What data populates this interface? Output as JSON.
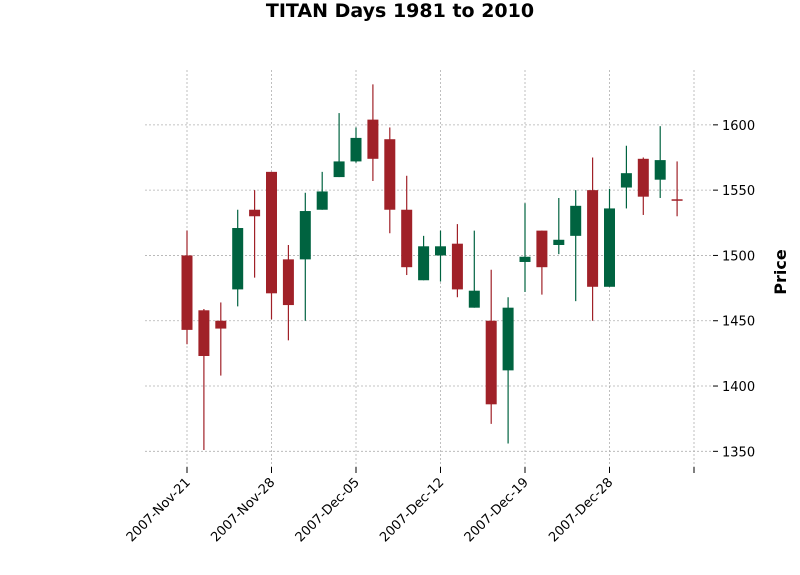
{
  "chart_data": {
    "type": "candlestick",
    "title": "TITAN Days 1981 to 2010",
    "ylabel": "Price",
    "xlabel": "",
    "ylim": [
      1338,
      1642
    ],
    "yticks": [
      1350,
      1400,
      1450,
      1500,
      1550,
      1600
    ],
    "xticks": [
      {
        "label": "2007-Nov-21",
        "index": 0
      },
      {
        "label": "2007-Nov-28",
        "index": 5
      },
      {
        "label": "2007-Dec-05",
        "index": 10
      },
      {
        "label": "2007-Dec-12",
        "index": 15
      },
      {
        "label": "2007-Dec-19",
        "index": 20
      },
      {
        "label": "2007-Dec-28",
        "index": 25
      },
      {
        "label": "",
        "index": 30
      }
    ],
    "grid": true,
    "colors": {
      "up": "#006340",
      "down": "#A02128"
    },
    "candles": [
      {
        "open": 1500,
        "high": 1519,
        "low": 1432,
        "close": 1443
      },
      {
        "open": 1458,
        "high": 1459,
        "low": 1351,
        "close": 1423
      },
      {
        "open": 1450,
        "high": 1464,
        "low": 1408,
        "close": 1444
      },
      {
        "open": 1474,
        "high": 1535,
        "low": 1461,
        "close": 1521
      },
      {
        "open": 1535,
        "high": 1550,
        "low": 1483,
        "close": 1530
      },
      {
        "open": 1564,
        "high": 1564,
        "low": 1451,
        "close": 1471
      },
      {
        "open": 1497,
        "high": 1508,
        "low": 1435,
        "close": 1462
      },
      {
        "open": 1497,
        "high": 1548,
        "low": 1450,
        "close": 1534
      },
      {
        "open": 1535,
        "high": 1564,
        "low": 1535,
        "close": 1549
      },
      {
        "open": 1560,
        "high": 1609,
        "low": 1560,
        "close": 1572
      },
      {
        "open": 1572,
        "high": 1598,
        "low": 1571,
        "close": 1590
      },
      {
        "open": 1604,
        "high": 1631,
        "low": 1557,
        "close": 1574
      },
      {
        "open": 1589,
        "high": 1598,
        "low": 1517,
        "close": 1535
      },
      {
        "open": 1535,
        "high": 1561,
        "low": 1485,
        "close": 1491
      },
      {
        "open": 1481,
        "high": 1515,
        "low": 1481,
        "close": 1507
      },
      {
        "open": 1500,
        "high": 1519,
        "low": 1480,
        "close": 1507
      },
      {
        "open": 1509,
        "high": 1524,
        "low": 1468,
        "close": 1474
      },
      {
        "open": 1460,
        "high": 1519,
        "low": 1460,
        "close": 1473
      },
      {
        "open": 1450,
        "high": 1489,
        "low": 1371,
        "close": 1386
      },
      {
        "open": 1412,
        "high": 1468,
        "low": 1356,
        "close": 1460
      },
      {
        "open": 1495,
        "high": 1540,
        "low": 1472,
        "close": 1499
      },
      {
        "open": 1519,
        "high": 1519,
        "low": 1470,
        "close": 1491
      },
      {
        "open": 1508,
        "high": 1544,
        "low": 1501,
        "close": 1512
      },
      {
        "open": 1515,
        "high": 1550,
        "low": 1465,
        "close": 1538
      },
      {
        "open": 1550,
        "high": 1575,
        "low": 1450,
        "close": 1476
      },
      {
        "open": 1476,
        "high": 1551,
        "low": 1476,
        "close": 1536
      },
      {
        "open": 1552,
        "high": 1584,
        "low": 1536,
        "close": 1563
      },
      {
        "open": 1574,
        "high": 1575,
        "low": 1531,
        "close": 1545
      },
      {
        "open": 1558,
        "high": 1599,
        "low": 1544,
        "close": 1573
      },
      {
        "open": 1543,
        "high": 1572,
        "low": 1530,
        "close": 1542
      }
    ]
  }
}
